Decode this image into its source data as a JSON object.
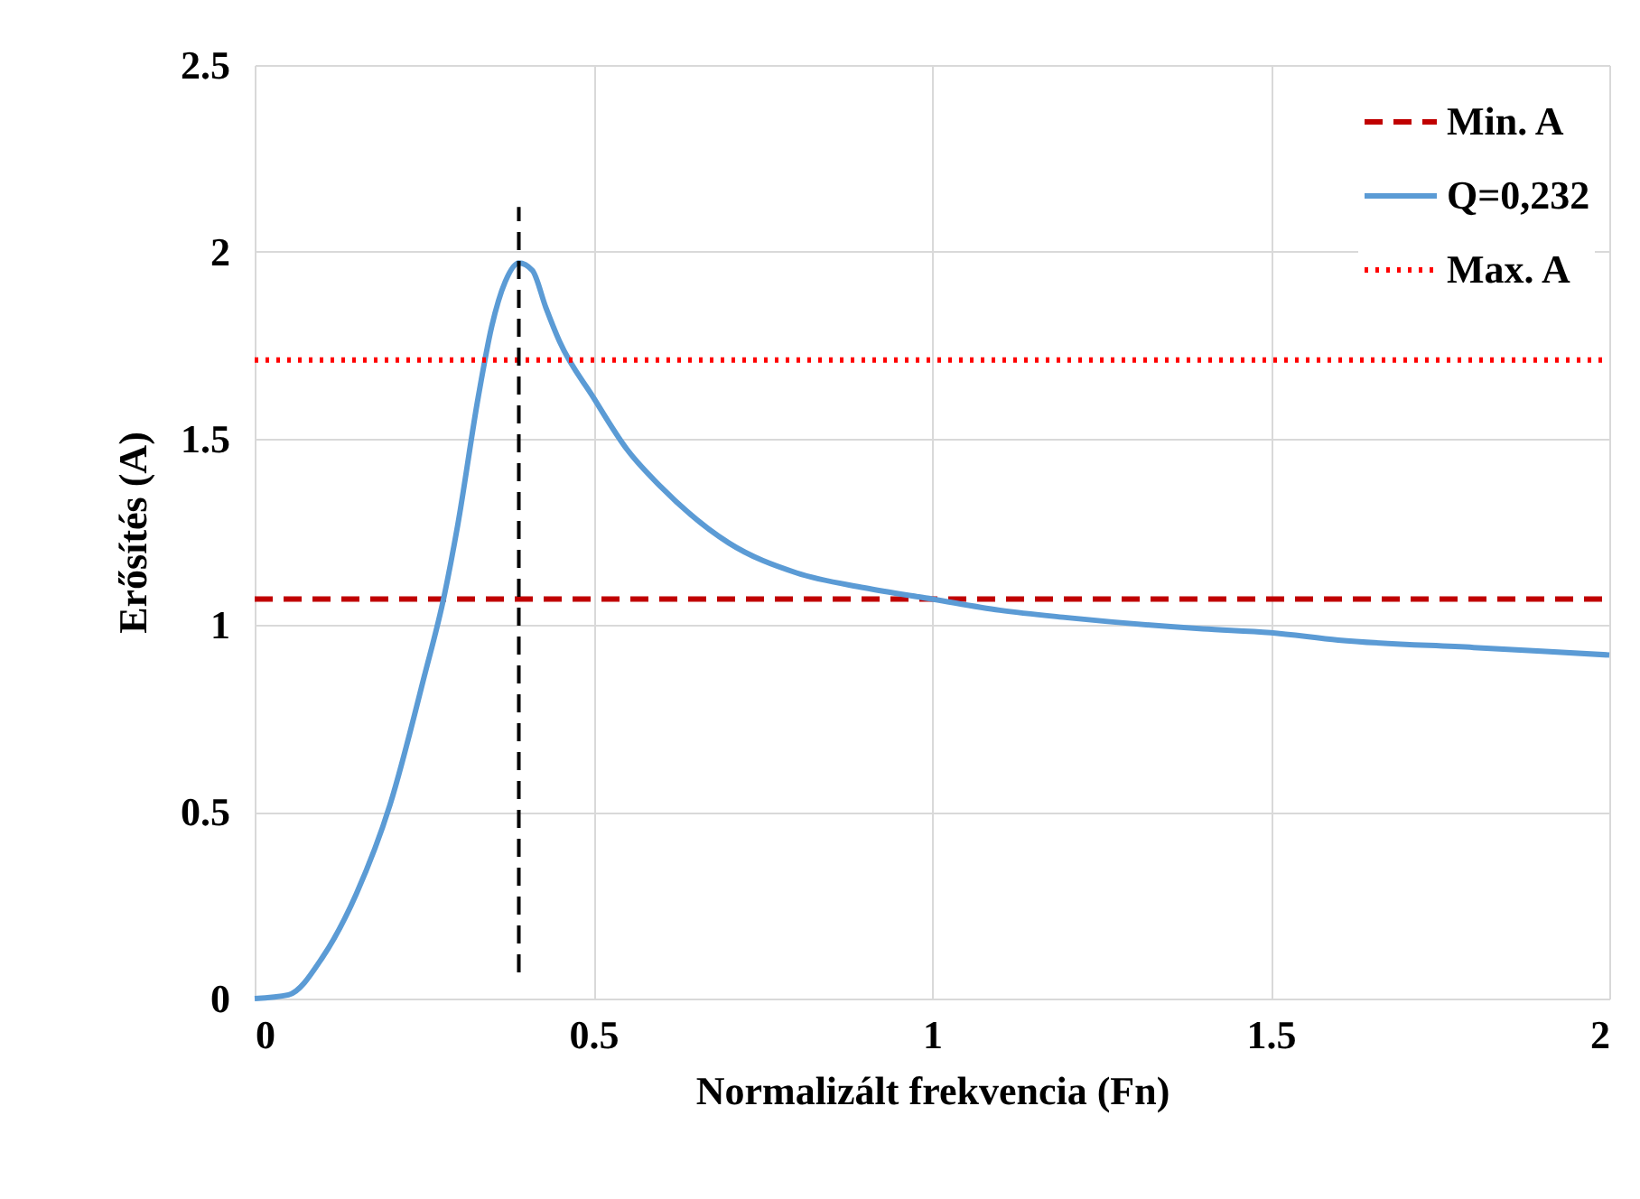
{
  "chart_data": {
    "type": "line",
    "xlabel": "Normalizált frekvencia (Fn)",
    "ylabel": "Erősítés (A)",
    "xlim": [
      0,
      2
    ],
    "xticks": [
      0,
      0.5,
      1,
      1.5,
      2
    ],
    "ylim": [
      0,
      2.5
    ],
    "yticks": [
      0,
      0.5,
      1,
      1.5,
      2,
      2.5
    ],
    "grid": true,
    "legend": "top right",
    "marker": "none",
    "series": [
      {
        "name": "Min. A",
        "color": "#c00000",
        "line_style": "dashed",
        "x": [
          0,
          2
        ],
        "values": [
          1.07,
          1.07
        ]
      },
      {
        "name": "Q=0,232",
        "color": "#5b9bd5",
        "line_style": "solid",
        "x": [
          0,
          0.05,
          0.1,
          0.15,
          0.2,
          0.25,
          0.28,
          0.3,
          0.33,
          0.35,
          0.37,
          0.39,
          0.41,
          0.43,
          0.45,
          0.5,
          0.55,
          0.6,
          0.7,
          0.8,
          0.9,
          1,
          1.1,
          1.2,
          1.4,
          1.5,
          1.6,
          1.8,
          2
        ],
        "values": [
          0,
          0.01,
          0.11,
          0.28,
          0.52,
          0.86,
          1.08,
          1.27,
          1.61,
          1.8,
          1.92,
          1.97,
          1.95,
          1.85,
          1.76,
          1.61,
          1.47,
          1.37,
          1.22,
          1.14,
          1.1,
          1.07,
          1.04,
          1.02,
          0.99,
          0.98,
          0.96,
          0.94,
          0.92
        ]
      },
      {
        "name": "Max. A",
        "color": "#ff0000",
        "line_style": "dotted",
        "x": [
          0,
          2
        ],
        "values": [
          1.71,
          1.71
        ]
      },
      {
        "color": "#000000",
        "line_style": "dashed",
        "x": [
          0.39,
          0.39
        ],
        "values": [
          0.07,
          2.12
        ]
      }
    ]
  }
}
